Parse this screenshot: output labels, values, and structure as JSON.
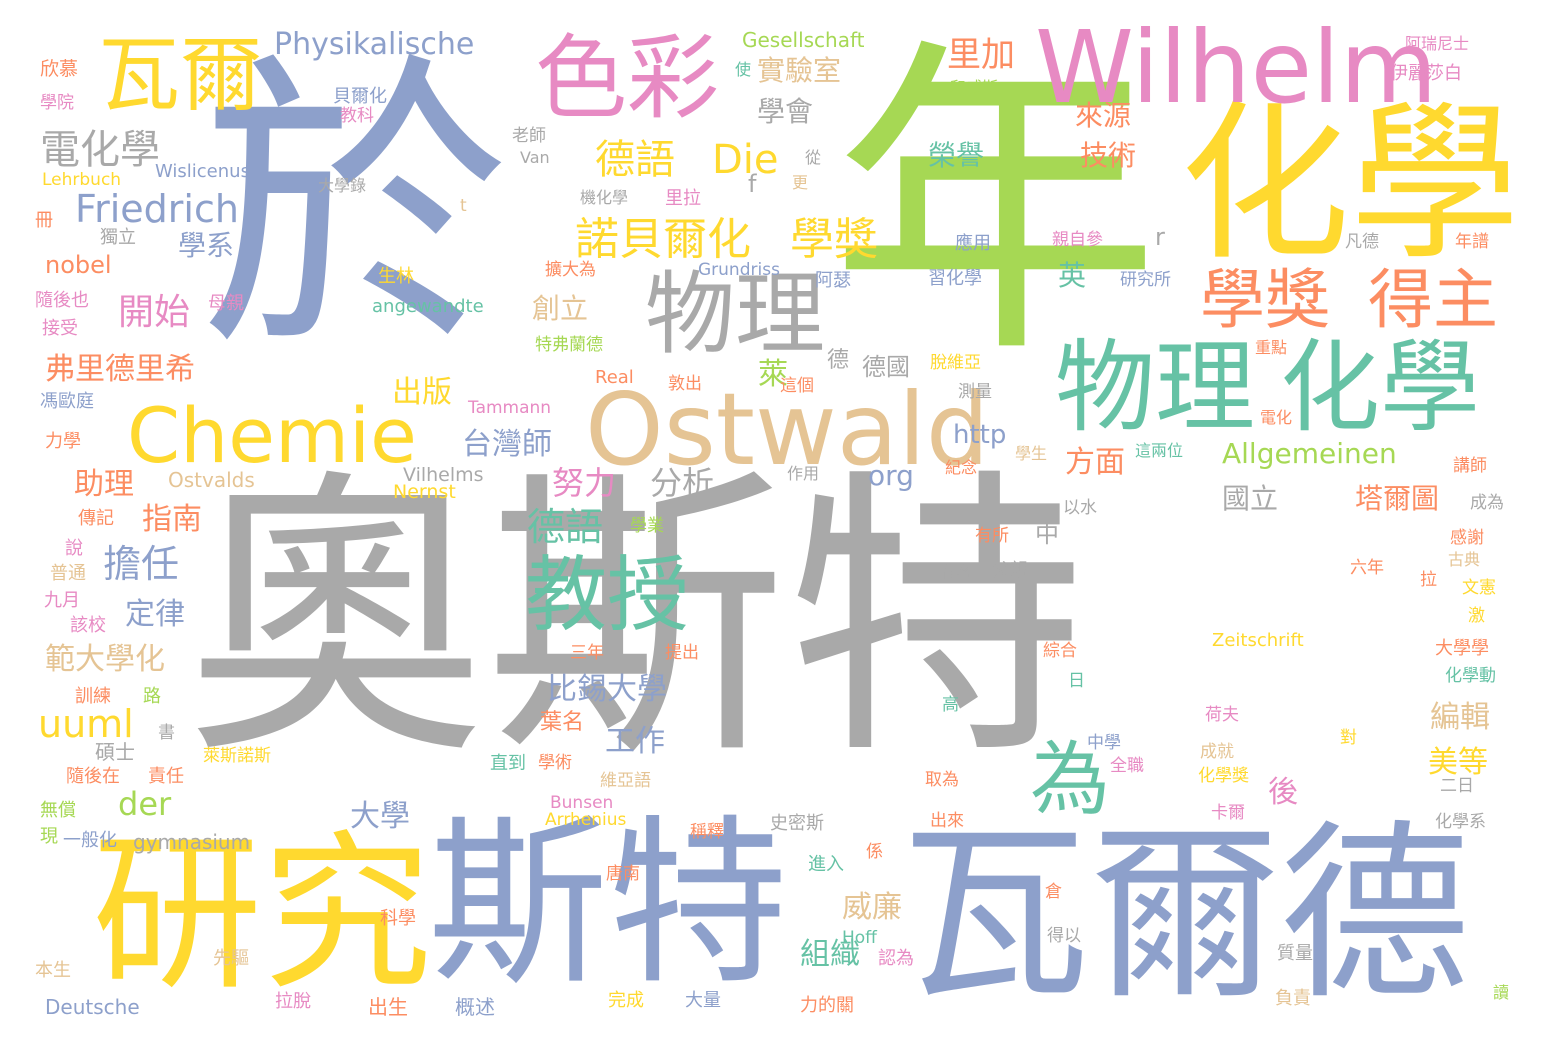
{
  "palette": {
    "grey": "#a9a9a9",
    "blue": "#8da0cb",
    "green": "#a6d854",
    "yellow": "#ffd92f",
    "pink": "#e78ac3",
    "orange": "#fc8d62",
    "teal": "#66c2a5",
    "tan": "#e5c494"
  },
  "words": [
    "奧斯特",
    "年",
    "於",
    "斯特",
    "瓦爾德",
    "化學",
    "研究",
    "Wilhelm",
    "物理",
    "Ostwald",
    "色彩",
    "瓦爾",
    "Chemie",
    "教授",
    "物理",
    "化學",
    "學獎",
    "得主",
    "為",
    "諾貝爾化",
    "學獎",
    "德語",
    "Die",
    "電化學",
    "Friedrich",
    "實驗室",
    "里加",
    "學會",
    "Physikalische",
    "Gesellschaft",
    "德語",
    "努力",
    "分析",
    "台灣師",
    "Allgemeinen",
    "塔爾圖",
    "國立",
    "開始",
    "弗里德里希",
    "出版",
    "擔任",
    "指南",
    "定律",
    "範大學化",
    "比錫大學",
    "工作",
    "uuml",
    "der",
    "大學",
    "威廉",
    "組織",
    "美等",
    "編輯",
    "後",
    "方面",
    "http",
    "org",
    "助理",
    "萊",
    "技術",
    "榮譽",
    "英",
    "創立",
    "學系",
    "nobel",
    "來源",
    "Wislicenus",
    "Lehrbuch",
    "冊",
    "獨立",
    "隨後也",
    "接受",
    "馮歐庭",
    "力學",
    "傳記",
    "說",
    "普通",
    "九月",
    "該校",
    "訓練",
    "路",
    "碩士",
    "隨後在",
    "責任",
    "無償",
    "現",
    "一般化",
    "gymnasium",
    "Deutsche",
    "本生",
    "先驅",
    "拉脫",
    "出生",
    "概述",
    "完成",
    "大量",
    "力的關",
    "負責",
    "質量",
    "讀",
    "認為",
    "Hoff",
    "得以",
    "倉",
    "進入",
    "係",
    "唐南",
    "科學",
    "史密斯",
    "出來",
    "稱釋",
    "卡爾",
    "化學系",
    "二日",
    "Arrhenius",
    "Bunsen",
    "維亞語",
    "直到",
    "學術",
    "中學",
    "全職",
    "成就",
    "取為",
    "化學獎",
    "荷夫",
    "對",
    "大學學",
    "化學動",
    "六年",
    "拉",
    "文憲",
    "激",
    "古典",
    "感謝",
    "成為",
    "講師",
    "紀念",
    "學生",
    "這兩位",
    "電化",
    "重點",
    "作用",
    "Vilhelms",
    "Ostvalds",
    "Nernst",
    "Tammann",
    "Real",
    "敦出",
    "這個",
    "測量",
    "脫維亞",
    "德國",
    "應用",
    "習化學",
    "親自參",
    "研究所",
    "凡德",
    "年譜",
    "阿瑞尼士",
    "伊麗莎白",
    "和威斯",
    "欣慕",
    "學院",
    "貝爾化",
    "教科",
    "老師",
    "Van",
    "從",
    "更",
    "大學錄",
    "機化學",
    "里拉",
    "擴大為",
    "Grundriss",
    "阿瑟",
    "生林",
    "angewandte",
    "特弗蘭德",
    "母親",
    "中",
    "有所",
    "有名",
    "父親",
    "以水",
    "Zeitschrift",
    "綜合",
    "日",
    "高",
    "葉名",
    "三年",
    "提出",
    "學業",
    "萊斯諾斯",
    "書",
    "f",
    "r",
    "t",
    "德",
    "使"
  ]
}
